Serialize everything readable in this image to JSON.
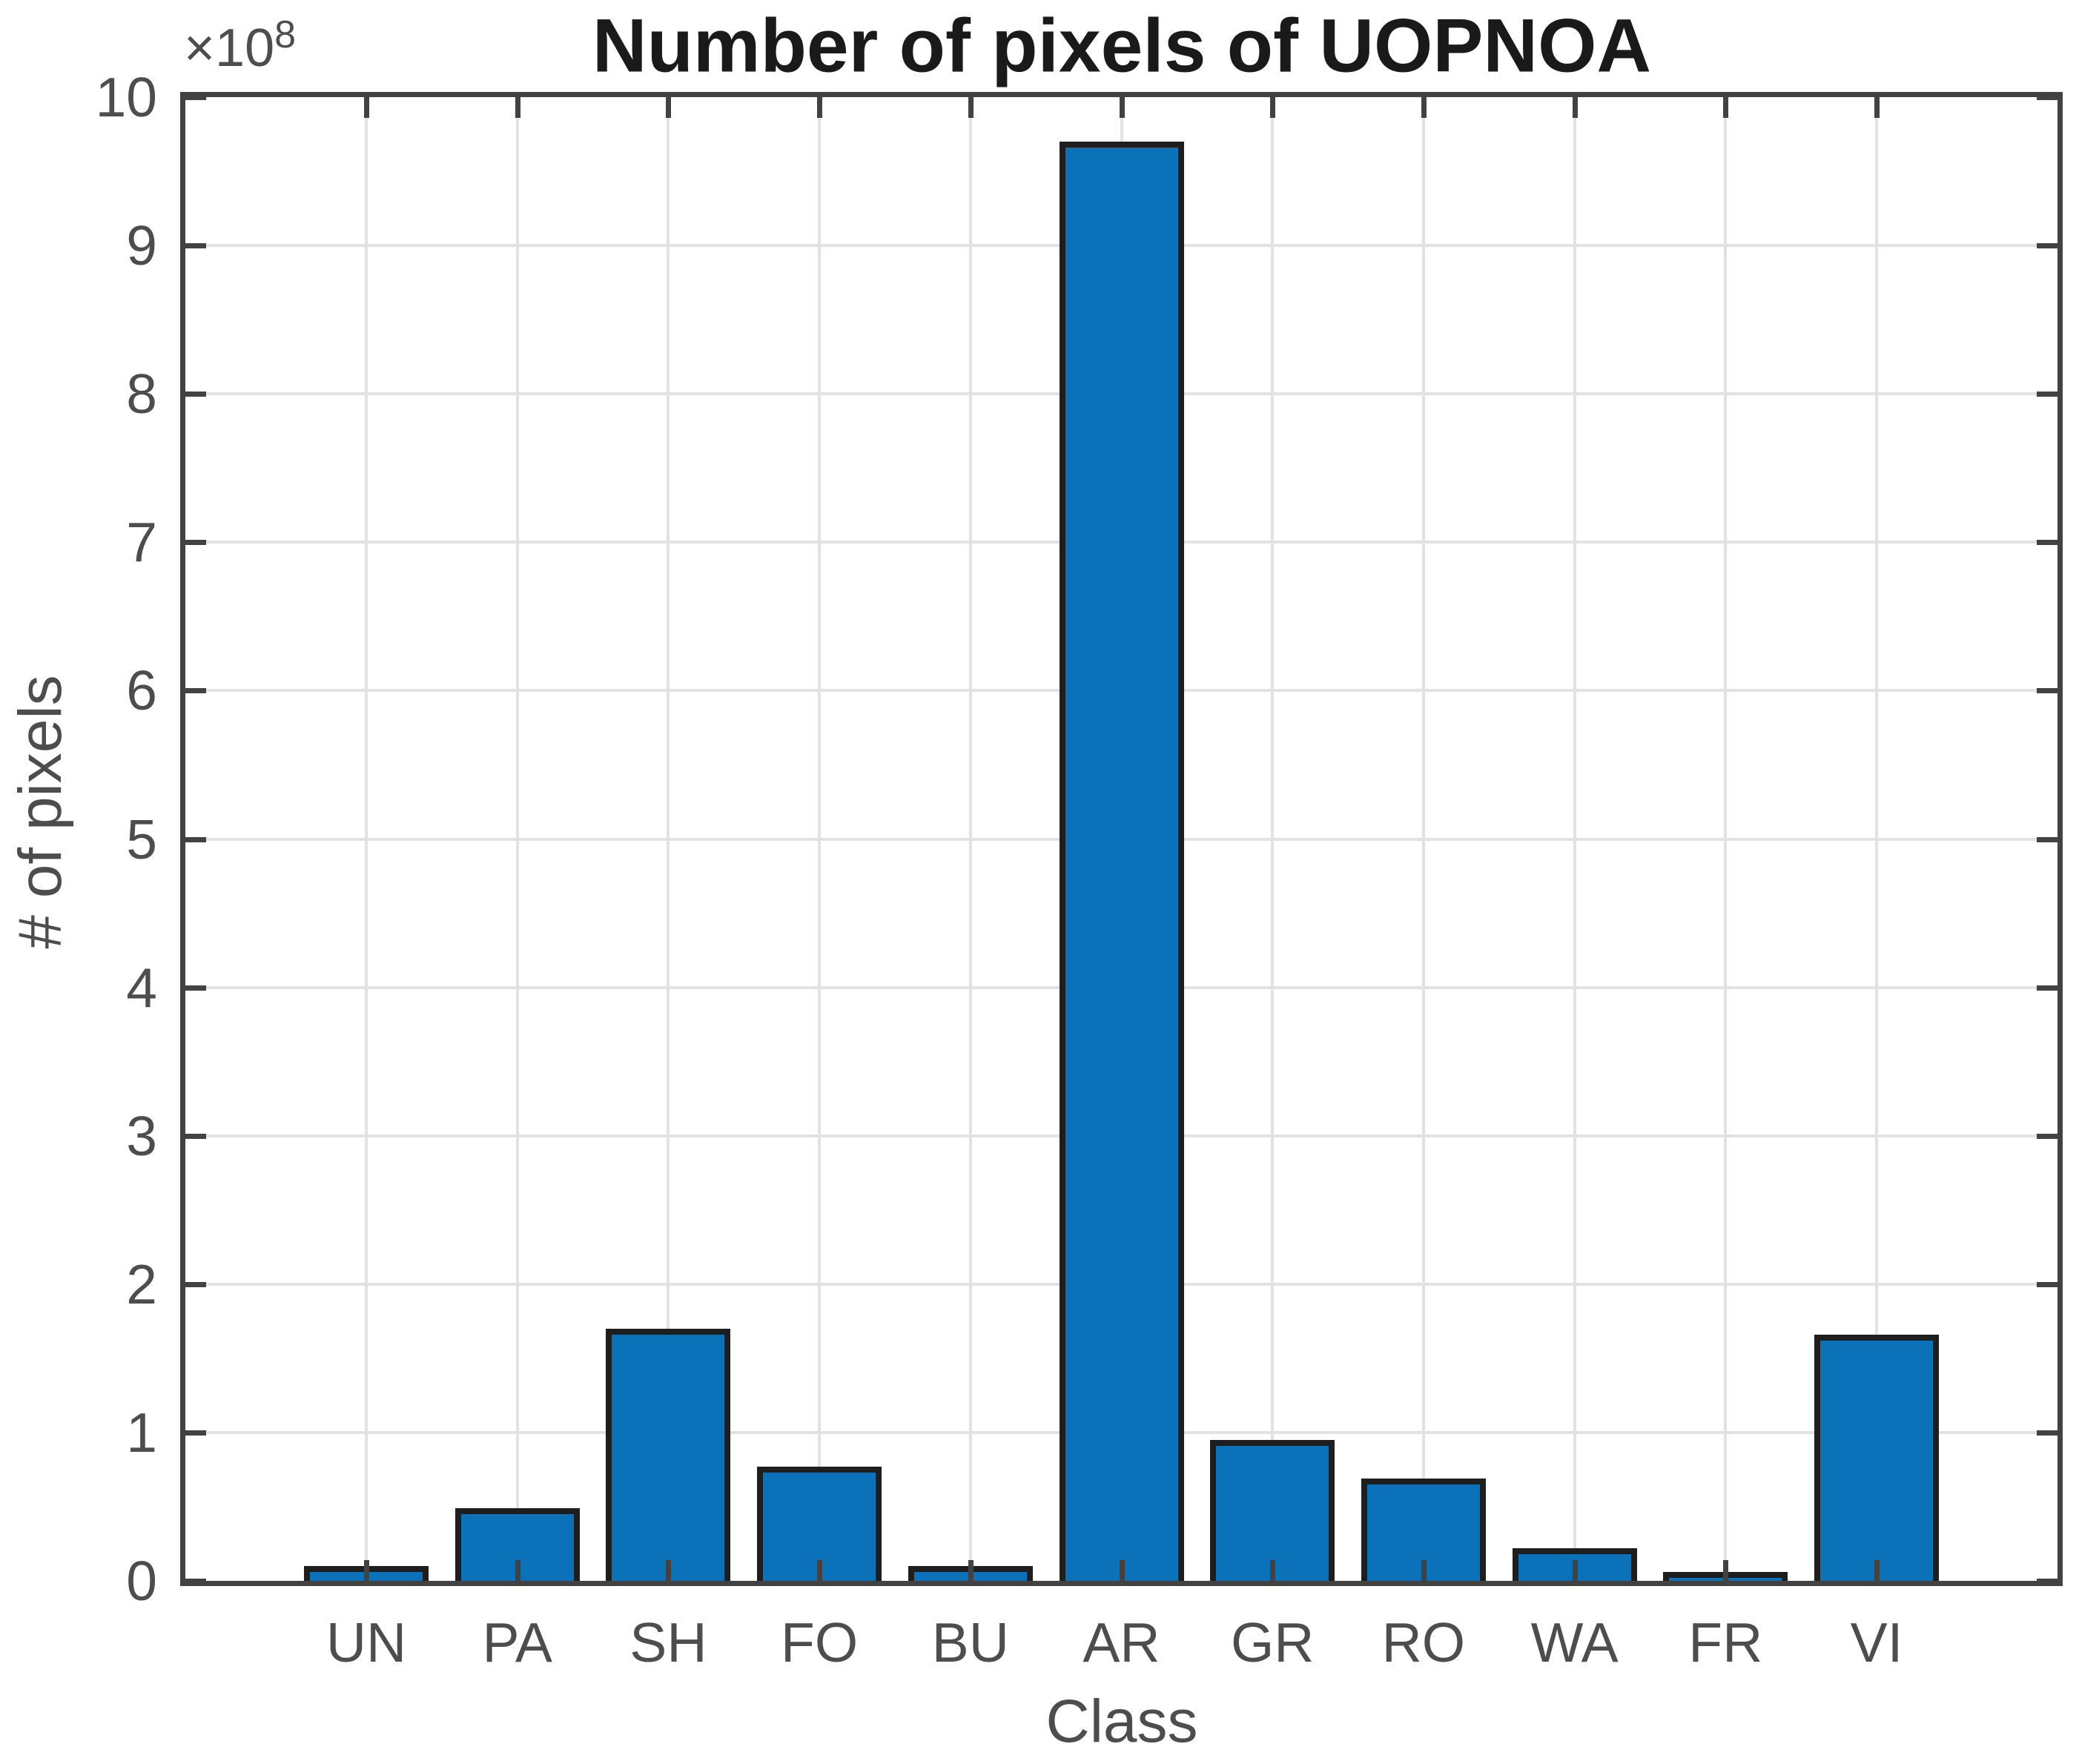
{
  "chart_data": {
    "type": "bar",
    "title": "Number of pixels of UOPNOA",
    "xlabel": "Class",
    "ylabel": "# of pixels",
    "y_exponent_label": "×10",
    "y_exponent": "8",
    "y_scale_note": "y values are multiples of 10^8 pixels",
    "categories": [
      "UN",
      "PA",
      "SH",
      "FO",
      "BU",
      "AR",
      "GR",
      "RO",
      "WA",
      "FR",
      "VI"
    ],
    "values": [
      0.08,
      0.47,
      1.68,
      0.75,
      0.08,
      9.68,
      0.93,
      0.67,
      0.2,
      0.04,
      1.64
    ],
    "ylim": [
      0,
      10
    ],
    "yticks": [
      0,
      1,
      2,
      3,
      4,
      5,
      6,
      7,
      8,
      9,
      10
    ],
    "grid": true,
    "legend": "none",
    "bar_width_fraction": 0.8,
    "colors": {
      "bar_fill": "#0B72B9",
      "bar_edge": "#1E1E1E",
      "axis_box": "#424242",
      "gridline": "#E2E2E2",
      "tick_label": "#4D4D4D",
      "title": "#1A1A1A",
      "background": "#FFFFFF"
    }
  }
}
